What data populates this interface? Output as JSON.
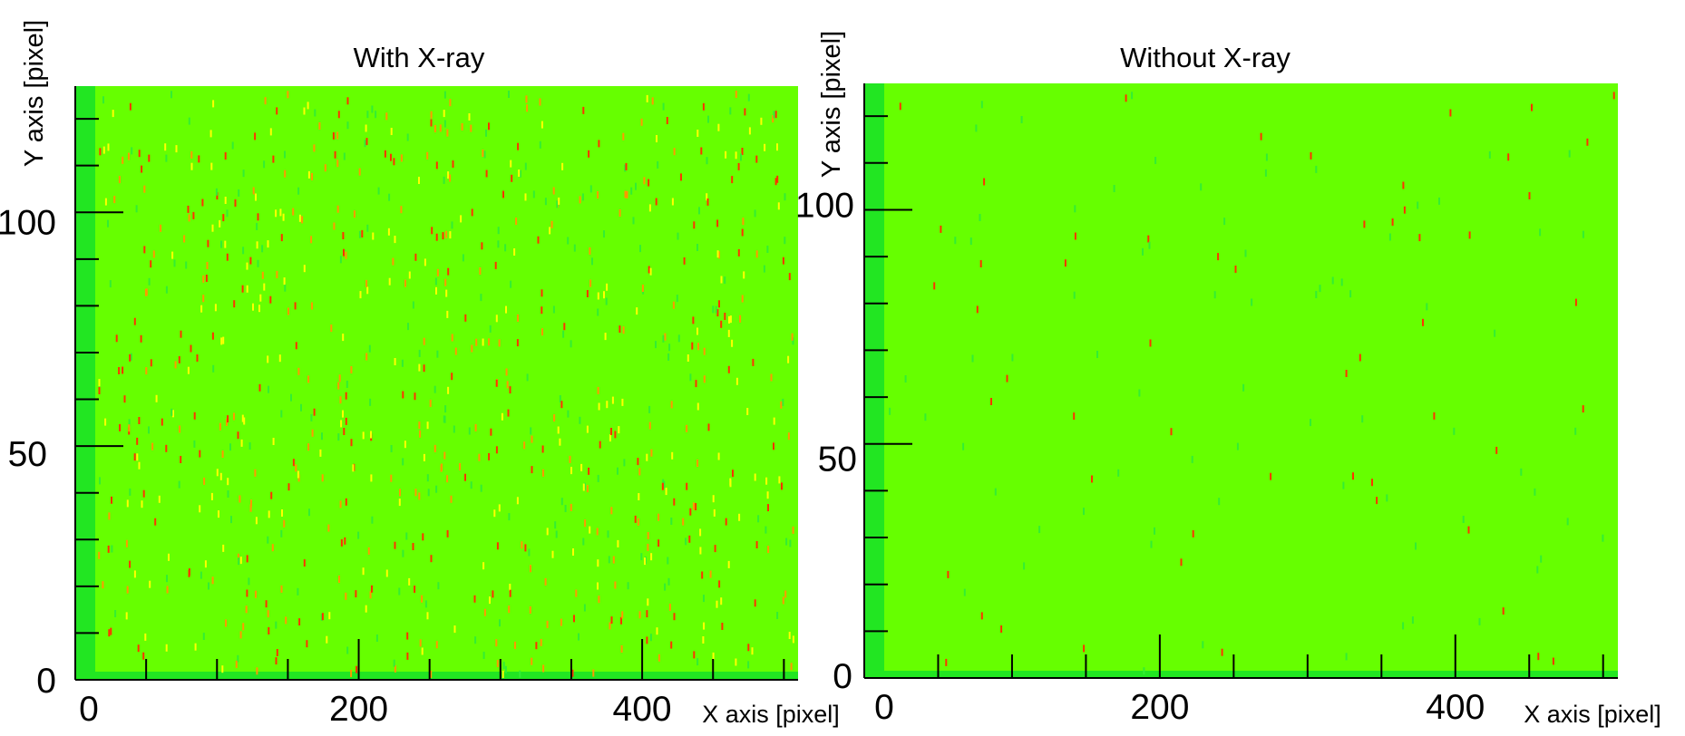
{
  "chart_data": [
    {
      "type": "heatmap",
      "title": "With X-ray",
      "xlabel": "X axis [pixel]",
      "ylabel": "Y axis [pixel]",
      "x_ticks": [
        0,
        200,
        400
      ],
      "y_ticks": [
        0,
        50,
        100
      ],
      "xlim": [
        0,
        510
      ],
      "ylim": [
        0,
        127
      ],
      "background_color": "#66ff00",
      "hit_density": "high",
      "hit_colors": [
        "#ffff00",
        "#ff9900",
        "#ff3300",
        "#33ee33"
      ]
    },
    {
      "type": "heatmap",
      "title": "Without X-ray",
      "xlabel": "X axis [pixel]",
      "ylabel": "Y axis [pixel]",
      "x_ticks": [
        0,
        200,
        400
      ],
      "y_ticks": [
        0,
        50,
        100
      ],
      "xlim": [
        0,
        510
      ],
      "ylim": [
        0,
        127
      ],
      "background_color": "#66ff00",
      "hit_density": "low",
      "hit_colors": [
        "#33ee33",
        "#ff3300"
      ]
    }
  ]
}
